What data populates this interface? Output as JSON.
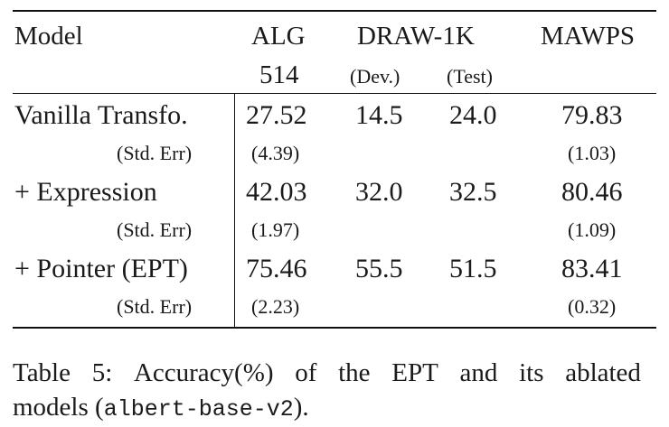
{
  "header": {
    "model": "Model",
    "alg": "ALG",
    "alg_count": "514",
    "draw": "DRAW-1K",
    "draw_dev": "(Dev.)",
    "draw_test": "(Test)",
    "mawps": "MAWPS"
  },
  "rows": [
    {
      "name": "Vanilla Transfo.",
      "alg": "27.52",
      "dev": "14.5",
      "test": "24.0",
      "mawps": "79.83",
      "err_label": "(Std. Err)",
      "alg_err": "(4.39)",
      "mawps_err": "(1.03)"
    },
    {
      "name": "+ Expression",
      "alg": "42.03",
      "dev": "32.0",
      "test": "32.5",
      "mawps": "80.46",
      "err_label": "(Std. Err)",
      "alg_err": "(1.97)",
      "mawps_err": "(1.09)"
    },
    {
      "name": "+ Pointer (EPT)",
      "alg": "75.46",
      "dev": "55.5",
      "test": "51.5",
      "mawps": "83.41",
      "err_label": "(Std. Err)",
      "alg_err": "(2.23)",
      "mawps_err": "(0.32)"
    }
  ],
  "caption": {
    "words": [
      "Table",
      "5:",
      "Accuracy(%)",
      "of",
      "the",
      "EPT",
      "and",
      "its",
      "ablated"
    ],
    "line2_text": "models (",
    "line2_code": "albert-base-v2",
    "line2_end": ")."
  }
}
